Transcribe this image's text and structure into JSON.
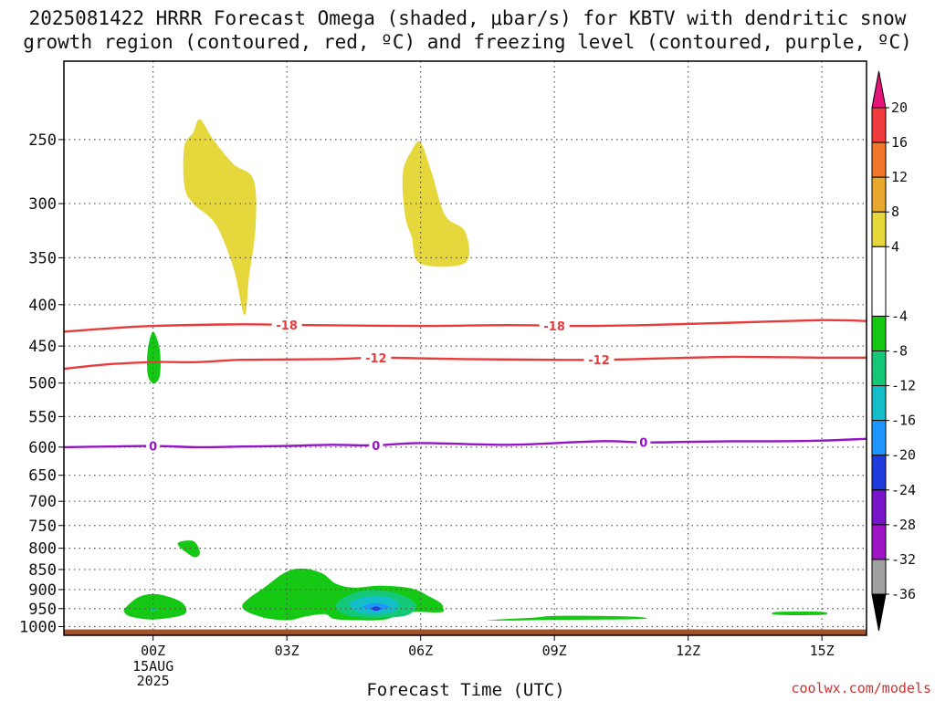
{
  "title_line1": "2025081422 HRRR Forecast Omega (shaded, μbar/s) for KBTV with dendritic snow",
  "title_line2": "growth region (contoured, red, ºC) and freezing level (contoured, purple, ºC)",
  "credit": "coolwx.com/models",
  "chart_data": {
    "type": "time-height cross section",
    "title": "2025081422 HRRR Forecast Omega (shaded, μbar/s) for KBTV with dendritic snow growth region (contoured, red, ºC) and freezing level (contoured, purple, ºC)",
    "xlabel": "Forecast Time (UTC)",
    "ylabel": "",
    "x_range_hours": [
      -2,
      16
    ],
    "y_range_hPa": [
      200,
      1025
    ],
    "y_scale": "log",
    "x_ticks": [
      {
        "hour": 0,
        "label": "00Z",
        "sub": [
          "15AUG",
          "2025"
        ]
      },
      {
        "hour": 3,
        "label": "03Z"
      },
      {
        "hour": 6,
        "label": "06Z"
      },
      {
        "hour": 9,
        "label": "09Z"
      },
      {
        "hour": 12,
        "label": "12Z"
      },
      {
        "hour": 15,
        "label": "15Z"
      }
    ],
    "y_ticks": [
      250,
      300,
      350,
      400,
      450,
      500,
      550,
      600,
      650,
      700,
      750,
      800,
      850,
      900,
      950,
      1000
    ],
    "grid": "dotted",
    "colorbar": {
      "labels": [
        20,
        16,
        12,
        8,
        4,
        -4,
        -8,
        -12,
        -16,
        -20,
        -24,
        -28,
        -32,
        -36
      ],
      "bins": [
        {
          "range": [
            16,
            20
          ],
          "color": "#f03c3c"
        },
        {
          "range": [
            12,
            16
          ],
          "color": "#f07828"
        },
        {
          "range": [
            8,
            12
          ],
          "color": "#e8a830"
        },
        {
          "range": [
            4,
            8
          ],
          "color": "#e6d83c"
        },
        {
          "range": [
            -4,
            4
          ],
          "color": "#ffffff"
        },
        {
          "range": [
            -8,
            -4
          ],
          "color": "#14c814"
        },
        {
          "range": [
            -12,
            -8
          ],
          "color": "#14c878"
        },
        {
          "range": [
            -16,
            -12
          ],
          "color": "#14bec8"
        },
        {
          "range": [
            -20,
            -16
          ],
          "color": "#1e96ff"
        },
        {
          "range": [
            -24,
            -20
          ],
          "color": "#1e3cdc"
        },
        {
          "range": [
            -28,
            -24
          ],
          "color": "#7814c8"
        },
        {
          "range": [
            -32,
            -28
          ],
          "color": "#a014c8"
        },
        {
          "range": [
            -36,
            -32
          ],
          "color": "#a0a0a0"
        }
      ],
      "top_arrow_color": "#e6147a",
      "bottom_arrow_color": "#000000"
    },
    "contours": [
      {
        "name": "-18",
        "color": "#e83c3c",
        "points": [
          [
            -2,
            432
          ],
          [
            -1,
            428
          ],
          [
            0,
            425
          ],
          [
            2,
            423
          ],
          [
            3.5,
            424
          ],
          [
            6,
            425
          ],
          [
            8,
            424
          ],
          [
            9.5,
            425
          ],
          [
            11,
            424
          ],
          [
            13,
            421
          ],
          [
            15,
            418
          ],
          [
            16,
            419
          ]
        ],
        "labels": [
          3,
          9
        ]
      },
      {
        "name": "-12",
        "color": "#e83c3c",
        "points": [
          [
            -2,
            480
          ],
          [
            -1,
            474
          ],
          [
            0,
            471
          ],
          [
            1,
            471
          ],
          [
            2,
            468
          ],
          [
            4,
            467
          ],
          [
            5,
            465
          ],
          [
            6,
            466
          ],
          [
            7,
            467
          ],
          [
            9,
            468
          ],
          [
            10,
            468
          ],
          [
            11.5,
            466
          ],
          [
            13,
            464
          ],
          [
            15,
            465
          ],
          [
            16,
            465
          ]
        ],
        "labels": [
          5,
          10
        ]
      },
      {
        "name": "0",
        "color": "#9614c8",
        "points": [
          [
            -2,
            600
          ],
          [
            -1,
            599
          ],
          [
            0,
            598
          ],
          [
            1,
            600
          ],
          [
            2,
            599
          ],
          [
            3,
            598
          ],
          [
            4,
            596
          ],
          [
            5,
            597
          ],
          [
            6,
            593
          ],
          [
            8,
            596
          ],
          [
            10,
            590
          ],
          [
            11,
            592
          ],
          [
            12,
            591
          ],
          [
            13,
            590
          ],
          [
            14,
            590
          ],
          [
            15,
            589
          ],
          [
            16,
            586
          ]
        ],
        "labels": [
          0,
          5,
          11
        ]
      }
    ],
    "omega_regions": [
      {
        "value": "4 to 8",
        "color": "#e6d83c",
        "points": [
          [
            0.7,
            255
          ],
          [
            0.9,
            245
          ],
          [
            1.05,
            236
          ],
          [
            1.35,
            250
          ],
          [
            1.8,
            268
          ],
          [
            2.25,
            280
          ],
          [
            2.3,
            320
          ],
          [
            2.15,
            370
          ],
          [
            2.05,
            412
          ],
          [
            1.8,
            360
          ],
          [
            1.4,
            318
          ],
          [
            0.9,
            300
          ],
          [
            0.7,
            285
          ]
        ]
      },
      {
        "value": "4 to 8",
        "color": "#e6d83c",
        "points": [
          [
            5.6,
            275
          ],
          [
            5.8,
            258
          ],
          [
            6.0,
            252
          ],
          [
            6.25,
            275
          ],
          [
            6.55,
            310
          ],
          [
            7.0,
            325
          ],
          [
            7.0,
            355
          ],
          [
            6.0,
            356
          ],
          [
            5.8,
            330
          ],
          [
            5.65,
            310
          ]
        ]
      },
      {
        "value": "-8 to -4",
        "color": "#14c814",
        "points": [
          [
            0.0,
            432
          ],
          [
            0.15,
            455
          ],
          [
            0.15,
            490
          ],
          [
            0.0,
            500
          ],
          [
            -0.12,
            488
          ],
          [
            -0.12,
            455
          ]
        ]
      },
      {
        "value": "-8 to -4",
        "color": "#14c814",
        "points": [
          [
            0.55,
            790
          ],
          [
            0.9,
            784
          ],
          [
            1.05,
            810
          ],
          [
            0.9,
            820
          ]
        ]
      },
      {
        "value": "-8 to -4",
        "color": "#14c814",
        "points": [
          [
            -0.6,
            945
          ],
          [
            -0.3,
            918
          ],
          [
            0.1,
            912
          ],
          [
            0.6,
            930
          ],
          [
            0.75,
            955
          ],
          [
            0.6,
            970
          ],
          [
            0.0,
            980
          ],
          [
            -0.5,
            972
          ],
          [
            -0.65,
            958
          ]
        ]
      },
      {
        "value": "-8 to -4",
        "color": "#14c814",
        "points": [
          [
            2.0,
            942
          ],
          [
            2.55,
            890
          ],
          [
            3.0,
            855
          ],
          [
            3.4,
            848
          ],
          [
            3.8,
            860
          ],
          [
            4.1,
            885
          ],
          [
            4.5,
            895
          ],
          [
            5.1,
            890
          ],
          [
            5.8,
            897
          ],
          [
            6.2,
            918
          ],
          [
            6.45,
            935
          ],
          [
            6.5,
            948
          ],
          [
            6.45,
            960
          ],
          [
            5.7,
            960
          ],
          [
            5.2,
            980
          ],
          [
            4.5,
            982
          ],
          [
            4.05,
            978
          ],
          [
            3.85,
            965
          ],
          [
            3.4,
            972
          ],
          [
            3.0,
            982
          ],
          [
            2.4,
            972
          ]
        ]
      },
      {
        "value": "-8 to -4",
        "color": "#14c814",
        "points": [
          [
            7.5,
            982
          ],
          [
            8.5,
            975
          ],
          [
            9.0,
            970
          ],
          [
            10.0,
            970
          ],
          [
            10.9,
            973
          ],
          [
            10.9,
            979
          ],
          [
            9.0,
            981
          ],
          [
            8.0,
            983
          ]
        ]
      },
      {
        "value": "-8 to -4",
        "color": "#14c814",
        "points": [
          [
            14.0,
            959
          ],
          [
            15.0,
            959
          ],
          [
            15.0,
            967
          ],
          [
            14.0,
            967
          ]
        ]
      },
      {
        "value": "-12 to -8",
        "color": "#14c878",
        "points": [
          [
            4.15,
            930
          ],
          [
            4.6,
            905
          ],
          [
            5.1,
            902
          ],
          [
            5.6,
            915
          ],
          [
            5.9,
            940
          ],
          [
            5.7,
            968
          ],
          [
            5.1,
            975
          ],
          [
            4.5,
            972
          ],
          [
            4.15,
            955
          ]
        ]
      },
      {
        "value": "-16 to -12",
        "color": "#14bec8",
        "points": [
          [
            4.4,
            935
          ],
          [
            4.8,
            918
          ],
          [
            5.2,
            918
          ],
          [
            5.5,
            935
          ],
          [
            5.4,
            958
          ],
          [
            5.0,
            965
          ],
          [
            4.6,
            960
          ]
        ]
      },
      {
        "value": "-20 to -16",
        "color": "#1e96ff",
        "points": [
          [
            4.7,
            945
          ],
          [
            5.0,
            935
          ],
          [
            5.3,
            945
          ],
          [
            5.0,
            956
          ]
        ]
      },
      {
        "value": "-24 to -20",
        "color": "#1e3cdc",
        "points": [
          [
            4.9,
            950
          ],
          [
            5.0,
            944
          ],
          [
            5.1,
            950
          ],
          [
            5.0,
            956
          ]
        ]
      },
      {
        "value": "-12 to -8",
        "color": "#14c878",
        "points": [
          [
            -0.08,
            952
          ],
          [
            0.0,
            946
          ],
          [
            0.08,
            952
          ],
          [
            0.0,
            958
          ]
        ]
      }
    ],
    "terrain": {
      "color": "#a0522d",
      "top_hPa": 1008
    }
  }
}
